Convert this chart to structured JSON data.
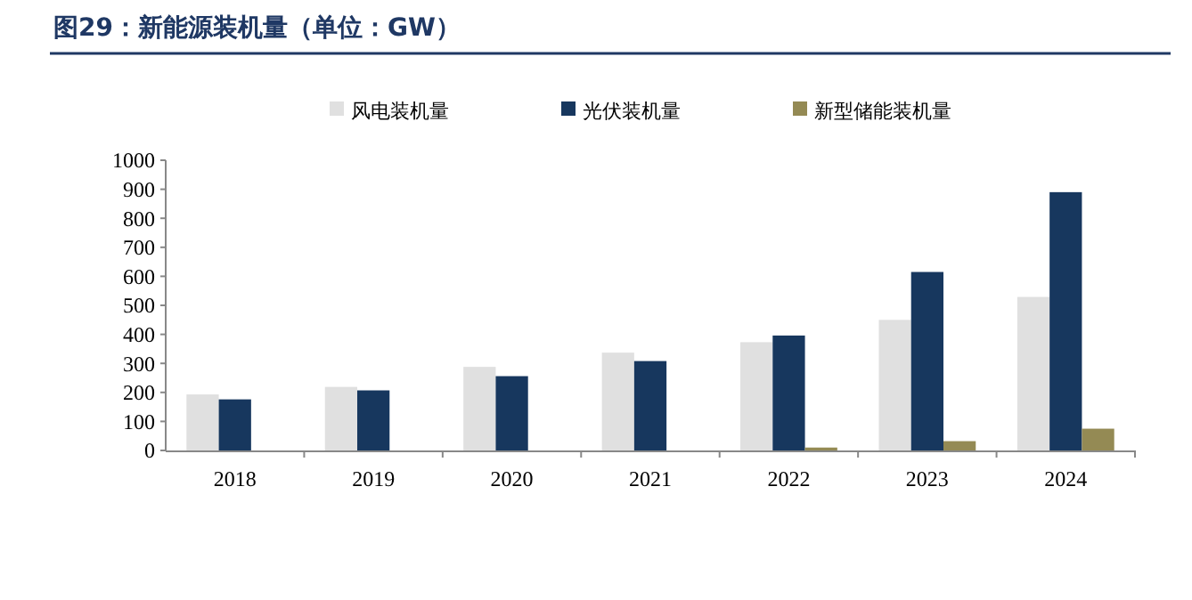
{
  "chart_data": {
    "type": "bar",
    "title": "图29：新能源装机量（单位：GW）",
    "categories": [
      "2018",
      "2019",
      "2020",
      "2021",
      "2022",
      "2023",
      "2024"
    ],
    "series": [
      {
        "name": "风电装机量",
        "color": "#e0e0e0",
        "values": [
          193,
          219,
          288,
          337,
          373,
          450,
          529
        ]
      },
      {
        "name": "光伏装机量",
        "color": "#17375e",
        "values": [
          176,
          207,
          256,
          308,
          396,
          615,
          890
        ]
      },
      {
        "name": "新型储能装机量",
        "color": "#948a54",
        "values": [
          null,
          null,
          null,
          null,
          10,
          32,
          75
        ]
      }
    ],
    "ylim": [
      0,
      1000
    ],
    "yticks": [
      0,
      100,
      200,
      300,
      400,
      500,
      600,
      700,
      800,
      900,
      1000
    ],
    "grid": false,
    "legend": "top"
  }
}
